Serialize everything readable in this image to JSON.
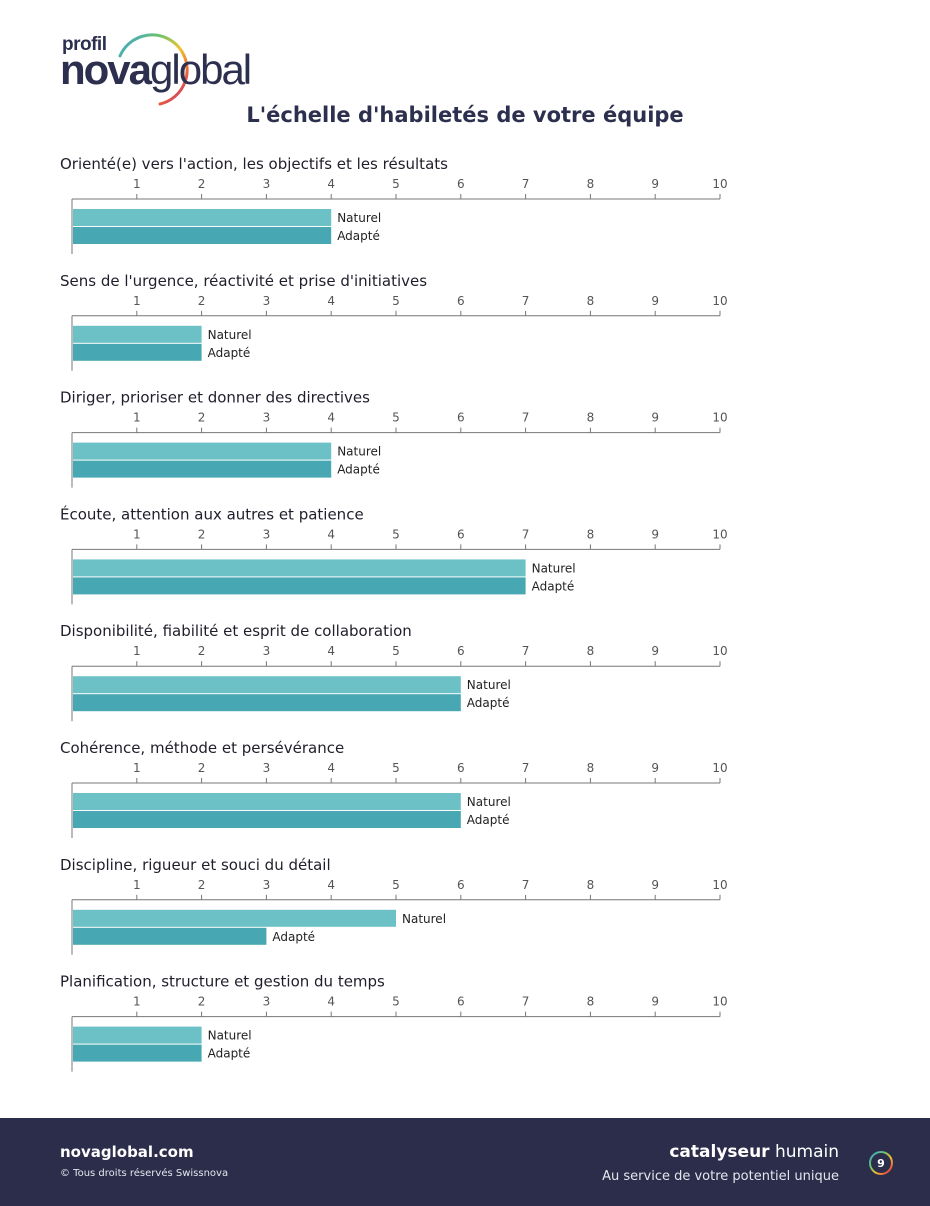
{
  "brand": {
    "profil": "profil",
    "nova": "nova",
    "global": "global"
  },
  "page_title": "L'échelle d'habiletés de votre équipe",
  "chart_data": {
    "type": "bar",
    "orientation": "horizontal",
    "title": "L'échelle d'habiletés de votre équipe",
    "xlim": [
      0,
      10
    ],
    "ticks": [
      1,
      2,
      3,
      4,
      5,
      6,
      7,
      8,
      9,
      10
    ],
    "series_names": [
      "Naturel",
      "Adapté"
    ],
    "colors": {
      "naturel": "#6cc1c6",
      "adapte": "#47a7b2"
    },
    "skills": [
      {
        "title": "Orienté(e) vers l'action, les objectifs et les résultats",
        "naturel": 4,
        "adapte": 4
      },
      {
        "title": "Sens de l'urgence, réactivité et prise d'initiatives",
        "naturel": 2,
        "adapte": 2
      },
      {
        "title": "Diriger, prioriser et donner des directives",
        "naturel": 4,
        "adapte": 4
      },
      {
        "title": "Écoute, attention aux autres et patience",
        "naturel": 7,
        "adapte": 7
      },
      {
        "title": "Disponibilité, fiabilité et esprit de collaboration",
        "naturel": 6,
        "adapte": 6
      },
      {
        "title": "Cohérence, méthode et persévérance",
        "naturel": 6,
        "adapte": 6
      },
      {
        "title": "Discipline, rigueur et souci du détail",
        "naturel": 5,
        "adapte": 3
      },
      {
        "title": "Planification, structure et gestion du temps",
        "naturel": 2,
        "adapte": 2
      }
    ]
  },
  "footer": {
    "site": "novaglobal.com",
    "copyright": "© Tous droits réservés Swissnova",
    "tagline_bold": "catalyseur",
    "tagline_light": " humain",
    "subtitle": "Au service de votre potentiel unique",
    "page_number": "9"
  }
}
